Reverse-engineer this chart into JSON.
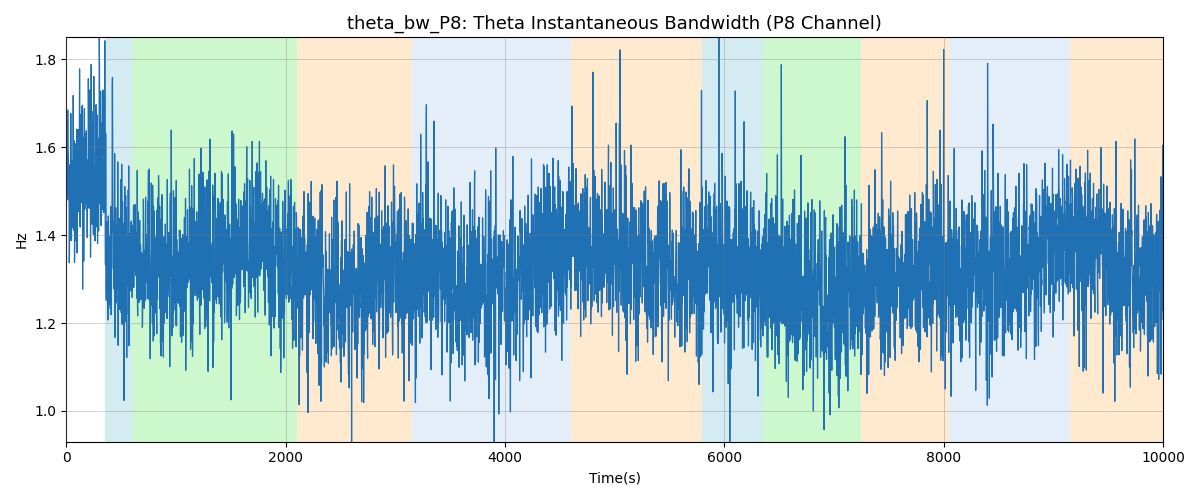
{
  "title": "theta_bw_P8: Theta Instantaneous Bandwidth (P8 Channel)",
  "xlabel": "Time(s)",
  "ylabel": "Hz",
  "xlim": [
    0,
    10000
  ],
  "ylim": [
    0.93,
    1.85
  ],
  "line_color": "#2070b4",
  "line_width": 0.9,
  "background_color": "#ffffff",
  "bands": [
    {
      "xmin": 350,
      "xmax": 600,
      "color": "#add8e6",
      "alpha": 0.5
    },
    {
      "xmin": 600,
      "xmax": 2100,
      "color": "#90ee90",
      "alpha": 0.45
    },
    {
      "xmin": 2100,
      "xmax": 3150,
      "color": "#ffd8a8",
      "alpha": 0.55
    },
    {
      "xmin": 3150,
      "xmax": 4600,
      "color": "#c8dff5",
      "alpha": 0.5
    },
    {
      "xmin": 4600,
      "xmax": 5800,
      "color": "#ffd8a8",
      "alpha": 0.55
    },
    {
      "xmin": 5800,
      "xmax": 6350,
      "color": "#add8e6",
      "alpha": 0.5
    },
    {
      "xmin": 6350,
      "xmax": 7250,
      "color": "#90ee90",
      "alpha": 0.45
    },
    {
      "xmin": 7250,
      "xmax": 8050,
      "color": "#ffd8a8",
      "alpha": 0.55
    },
    {
      "xmin": 8050,
      "xmax": 9150,
      "color": "#c8dff5",
      "alpha": 0.5
    },
    {
      "xmin": 9150,
      "xmax": 10000,
      "color": "#ffd8a8",
      "alpha": 0.55
    }
  ],
  "seed": 42,
  "n_points": 5000,
  "t_start": 0,
  "t_end": 10000,
  "title_fontsize": 13,
  "yticks": [
    1.0,
    1.2,
    1.4,
    1.6,
    1.8
  ],
  "xticks": [
    0,
    2000,
    4000,
    6000,
    8000,
    10000
  ]
}
